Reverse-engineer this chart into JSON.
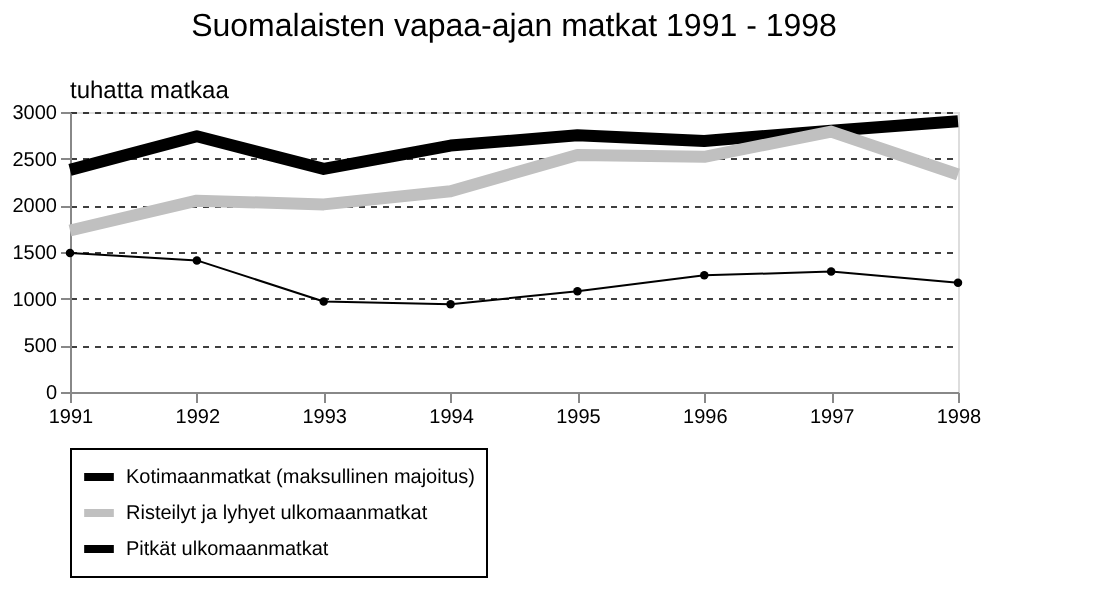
{
  "chart_data": {
    "type": "line",
    "title": "Suomalaisten vapaa-ajan matkat 1991 - 1998",
    "ylabel": "tuhatta matkaa",
    "x": [
      1991,
      1992,
      1993,
      1994,
      1995,
      1996,
      1997,
      1998
    ],
    "series": [
      {
        "name": "Kotimaanmatkat (maksullinen majoitus)",
        "color": "#000000",
        "marker": "none",
        "values": [
          2380,
          2740,
          2390,
          2640,
          2750,
          2690,
          2800,
          2900
        ]
      },
      {
        "name": "Risteilyt ja lyhyet ulkomaanmatkat",
        "color": "#c0c0c0",
        "marker": "none",
        "values": [
          1730,
          2050,
          2010,
          2150,
          2540,
          2520,
          2790,
          2330
        ]
      },
      {
        "name": "Pitkät ulkomaanmatkat",
        "color": "#000000",
        "marker": "circle",
        "values": [
          1490,
          1410,
          970,
          940,
          1080,
          1250,
          1290,
          1170
        ]
      }
    ],
    "xlim": [
      1991,
      1998
    ],
    "xticks": [
      1991,
      1992,
      1993,
      1994,
      1995,
      1996,
      1997,
      1998
    ],
    "ylim": [
      0,
      3000
    ],
    "yticks": [
      0,
      500,
      1000,
      1500,
      2000,
      2500,
      3000
    ],
    "grid": "y",
    "legend": "bottom"
  }
}
